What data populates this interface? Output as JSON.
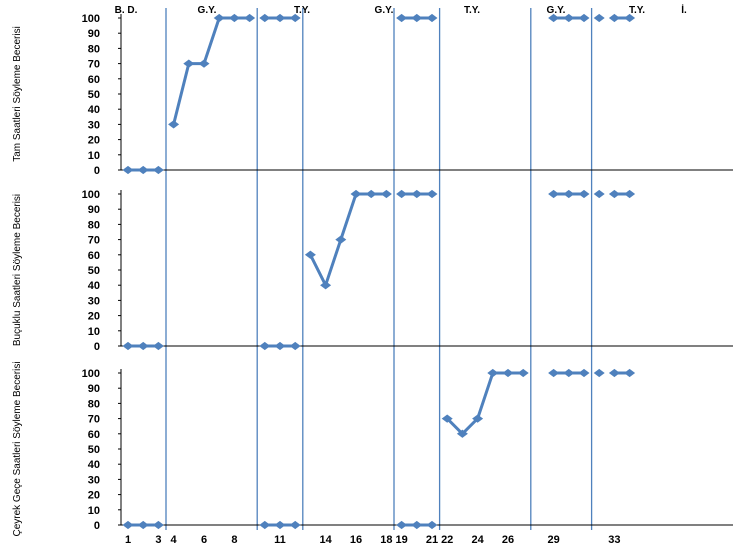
{
  "chart_data": {
    "type": "line",
    "phases": [
      "B. D.",
      "G.Y.",
      "T.Y.",
      "G.Y.",
      "T.Y.",
      "G.Y.",
      "T.Y.",
      "İ."
    ],
    "x_tick_labels": [
      "1",
      "3",
      "4",
      "6",
      "8",
      "11",
      "14",
      "16",
      "18",
      "19",
      "21",
      "22",
      "24",
      "26",
      "29",
      "33"
    ],
    "y_ticks": [
      "0",
      "10",
      "20",
      "30",
      "40",
      "50",
      "60",
      "70",
      "80",
      "90",
      "100"
    ],
    "ylim": [
      0,
      100
    ],
    "panels": [
      {
        "ylabel": "Tam Saatleri Söyleme Becerisi",
        "segments": [
          [
            [
              1,
              0
            ],
            [
              2,
              0
            ],
            [
              3,
              0
            ]
          ],
          [
            [
              4,
              30
            ],
            [
              5,
              70
            ],
            [
              6,
              70
            ],
            [
              7,
              100
            ],
            [
              8,
              100
            ],
            [
              9,
              100
            ]
          ],
          [
            [
              10,
              100
            ],
            [
              11,
              100
            ],
            [
              12,
              100
            ]
          ],
          [
            [
              19,
              100
            ],
            [
              20,
              100
            ],
            [
              21,
              100
            ]
          ],
          [
            [
              29,
              100
            ],
            [
              30,
              100
            ],
            [
              31,
              100
            ]
          ],
          [
            [
              32,
              100
            ]
          ],
          [
            [
              33,
              100
            ],
            [
              34,
              100
            ]
          ]
        ]
      },
      {
        "ylabel": "Buçuklu Saatleri Söyleme Becerisi",
        "segments": [
          [
            [
              1,
              0
            ],
            [
              2,
              0
            ],
            [
              3,
              0
            ]
          ],
          [
            [
              10,
              0
            ],
            [
              11,
              0
            ],
            [
              12,
              0
            ]
          ],
          [
            [
              13,
              60
            ],
            [
              14,
              40
            ],
            [
              15,
              70
            ],
            [
              16,
              100
            ],
            [
              17,
              100
            ],
            [
              18,
              100
            ]
          ],
          [
            [
              19,
              100
            ],
            [
              20,
              100
            ],
            [
              21,
              100
            ]
          ],
          [
            [
              29,
              100
            ],
            [
              30,
              100
            ],
            [
              31,
              100
            ]
          ],
          [
            [
              32,
              100
            ]
          ],
          [
            [
              33,
              100
            ],
            [
              34,
              100
            ]
          ]
        ]
      },
      {
        "ylabel": "Çeyrek Geçe Saatleri Söyleme Becerisi",
        "segments": [
          [
            [
              1,
              0
            ],
            [
              2,
              0
            ],
            [
              3,
              0
            ]
          ],
          [
            [
              10,
              0
            ],
            [
              11,
              0
            ],
            [
              12,
              0
            ]
          ],
          [
            [
              19,
              0
            ],
            [
              20,
              0
            ],
            [
              21,
              0
            ]
          ],
          [
            [
              22,
              70
            ],
            [
              23,
              60
            ],
            [
              24,
              70
            ],
            [
              25,
              100
            ],
            [
              26,
              100
            ],
            [
              27,
              100
            ]
          ],
          [
            [
              29,
              100
            ],
            [
              30,
              100
            ],
            [
              31,
              100
            ]
          ],
          [
            [
              32,
              100
            ]
          ],
          [
            [
              33,
              100
            ],
            [
              34,
              100
            ]
          ]
        ]
      }
    ],
    "phase_boundaries": [
      3.5,
      9.5,
      12.5,
      18.5,
      21.5,
      27.5,
      31.5
    ],
    "colors": {
      "series": "#4F81BD",
      "phase_line": "#4F81BD",
      "axis": "#000000"
    }
  }
}
